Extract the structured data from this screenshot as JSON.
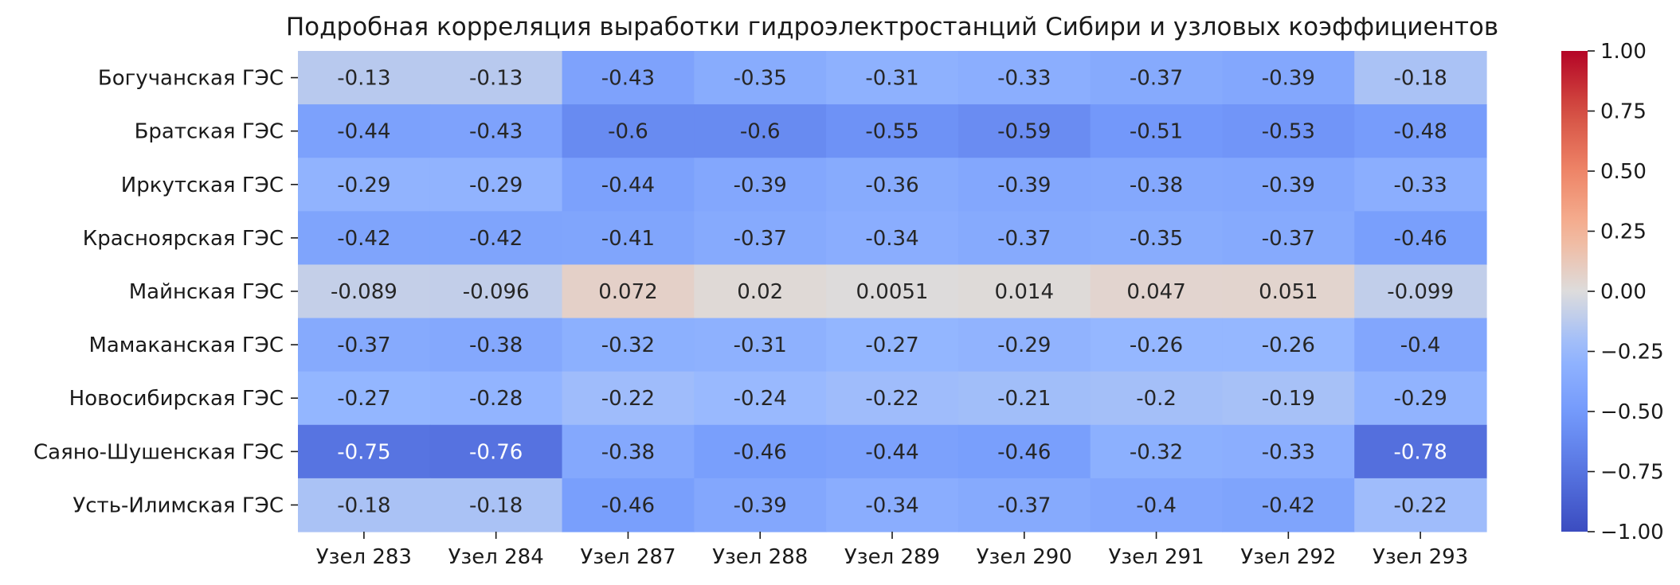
{
  "chart_data": {
    "type": "heatmap",
    "title": "Подробная корреляция выработки гидроэлектростанций Сибири и узловых коэффициентов",
    "xlabel": "",
    "ylabel": "",
    "columns": [
      "Узел 283",
      "Узел 284",
      "Узел 287",
      "Узел 288",
      "Узел 289",
      "Узел 290",
      "Узел 291",
      "Узел 292",
      "Узел 293"
    ],
    "rows": [
      "Богучанская ГЭС",
      "Братская ГЭС",
      "Иркутская ГЭС",
      "Красноярская ГЭС",
      "Майнская ГЭС",
      "Мамаканская ГЭС",
      "Новосибирская ГЭС",
      "Саяно-Шушенская ГЭС",
      "Усть-Илимская ГЭС"
    ],
    "values": [
      [
        -0.13,
        -0.13,
        -0.43,
        -0.35,
        -0.31,
        -0.33,
        -0.37,
        -0.39,
        -0.18
      ],
      [
        -0.44,
        -0.43,
        -0.6,
        -0.6,
        -0.55,
        -0.59,
        -0.51,
        -0.53,
        -0.48
      ],
      [
        -0.29,
        -0.29,
        -0.44,
        -0.39,
        -0.36,
        -0.39,
        -0.38,
        -0.39,
        -0.33
      ],
      [
        -0.42,
        -0.42,
        -0.41,
        -0.37,
        -0.34,
        -0.37,
        -0.35,
        -0.37,
        -0.46
      ],
      [
        -0.089,
        -0.096,
        0.072,
        0.02,
        0.0051,
        0.014,
        0.047,
        0.051,
        -0.099
      ],
      [
        -0.37,
        -0.38,
        -0.32,
        -0.31,
        -0.27,
        -0.29,
        -0.26,
        -0.26,
        -0.4
      ],
      [
        -0.27,
        -0.28,
        -0.22,
        -0.24,
        -0.22,
        -0.21,
        -0.2,
        -0.19,
        -0.29
      ],
      [
        -0.75,
        -0.76,
        -0.38,
        -0.46,
        -0.44,
        -0.46,
        -0.32,
        -0.33,
        -0.78
      ],
      [
        -0.18,
        -0.18,
        -0.46,
        -0.39,
        -0.34,
        -0.37,
        -0.4,
        -0.42,
        -0.22
      ]
    ],
    "colorscale": "coolwarm",
    "vmin": -1.0,
    "vmax": 1.0,
    "colorbar_ticks": [
      "1.00",
      "0.75",
      "0.50",
      "0.25",
      "0.00",
      "−0.25",
      "−0.50",
      "−0.75",
      "−1.00"
    ],
    "colorbar_tick_values": [
      1.0,
      0.75,
      0.5,
      0.25,
      0.0,
      -0.25,
      -0.5,
      -0.75,
      -1.0
    ],
    "annotations": true,
    "grid": false,
    "legend": "colorbar-right"
  }
}
